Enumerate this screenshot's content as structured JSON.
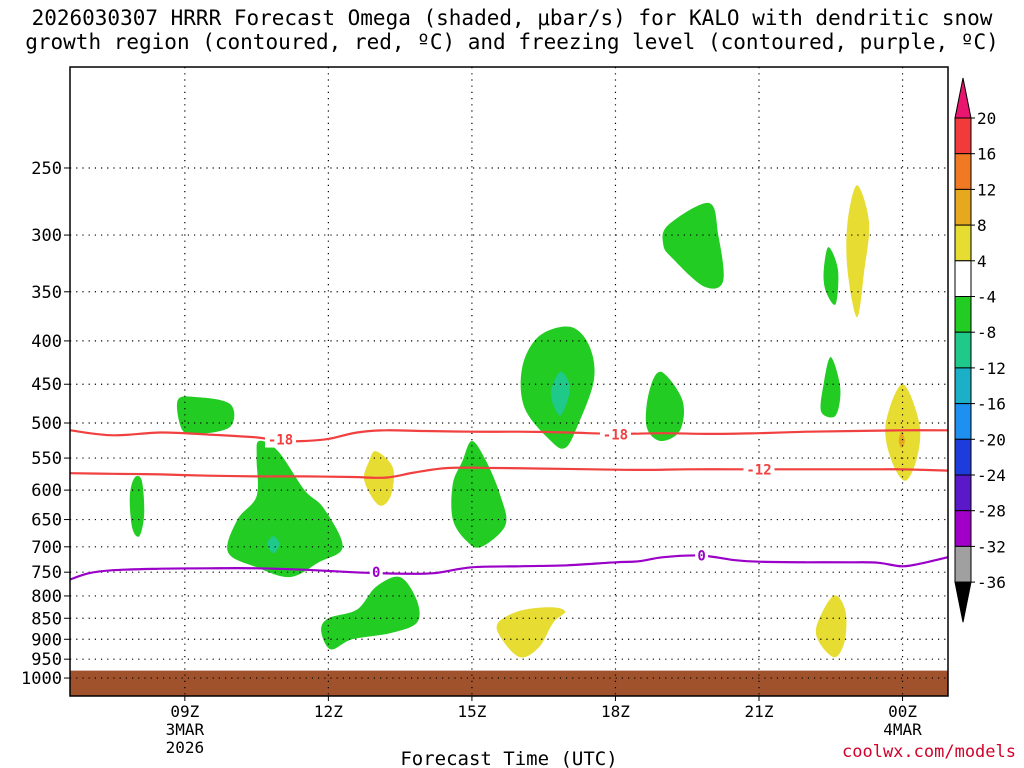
{
  "title_line1": "2026030307 HRRR Forecast Omega (shaded, μbar/s) for KALO with dendritic snow",
  "title_line2": "growth region (contoured, red, ºC) and freezing level (contoured, purple, ºC)",
  "watermark": "coolwx.com/models",
  "chart_data": {
    "type": "contour",
    "xlabel": "Forecast Time (UTC)",
    "ylabel": "",
    "y_scale": "pressure (log), inverted",
    "x_range_hours": [
      6.6,
      24.95
    ],
    "y_range_hpa": [
      190,
      1050
    ],
    "x_ticks": [
      {
        "hour": 9,
        "label": "09Z",
        "sub1": "3MAR",
        "sub2": "2026"
      },
      {
        "hour": 12,
        "label": "12Z",
        "sub1": "",
        "sub2": ""
      },
      {
        "hour": 15,
        "label": "15Z",
        "sub1": "",
        "sub2": ""
      },
      {
        "hour": 18,
        "label": "18Z",
        "sub1": "",
        "sub2": ""
      },
      {
        "hour": 21,
        "label": "21Z",
        "sub1": "",
        "sub2": ""
      },
      {
        "hour": 24,
        "label": "00Z",
        "sub1": "4MAR",
        "sub2": ""
      }
    ],
    "y_ticks": [
      250,
      300,
      350,
      400,
      450,
      500,
      550,
      600,
      650,
      700,
      750,
      800,
      850,
      900,
      950,
      1000
    ],
    "grid": "dotted",
    "ground_band": {
      "from_hpa": 980,
      "color": "#a0522d"
    },
    "colorbar": {
      "labels": [
        "20",
        "16",
        "12",
        "8",
        "4",
        "-4",
        "-8",
        "-12",
        "-16",
        "-20",
        "-24",
        "-28",
        "-32",
        "-36"
      ],
      "colors": [
        "#e8166e",
        "#f23a3a",
        "#f07a24",
        "#e6a81e",
        "#e6dc32",
        "#ffffff",
        "#22cc22",
        "#1ec98a",
        "#1cb0c8",
        "#1e90f0",
        "#1e3cdc",
        "#5a18c8",
        "#a000c8",
        "#a0a0a0",
        "#000000"
      ]
    },
    "contours": [
      {
        "name": "dendritic snow growth -18",
        "color": "#f04040",
        "label": "-18",
        "label_at": [
          [
            11.0,
            523
          ],
          [
            18.0,
            516
          ]
        ],
        "points": [
          [
            6.6,
            510
          ],
          [
            7.5,
            517
          ],
          [
            8.5,
            513
          ],
          [
            9.5,
            516
          ],
          [
            10.5,
            520
          ],
          [
            11.0,
            525
          ],
          [
            11.5,
            525
          ],
          [
            12.0,
            522
          ],
          [
            12.6,
            513
          ],
          [
            13.2,
            510
          ],
          [
            14.0,
            511
          ],
          [
            15.0,
            512
          ],
          [
            16.0,
            512
          ],
          [
            17.0,
            513
          ],
          [
            18.0,
            515
          ],
          [
            19.0,
            514
          ],
          [
            20.0,
            515
          ],
          [
            21.0,
            514
          ],
          [
            22.0,
            512
          ],
          [
            23.0,
            511
          ],
          [
            24.0,
            510
          ],
          [
            24.95,
            510
          ]
        ]
      },
      {
        "name": "dendritic snow growth -12",
        "color": "#f04040",
        "label": "-12",
        "label_at": [
          [
            21.0,
            567
          ]
        ],
        "points": [
          [
            6.6,
            573
          ],
          [
            7.5,
            574
          ],
          [
            8.5,
            575
          ],
          [
            9.5,
            577
          ],
          [
            10.5,
            578
          ],
          [
            11.5,
            578
          ],
          [
            12.5,
            579
          ],
          [
            13.2,
            580
          ],
          [
            13.8,
            572
          ],
          [
            14.5,
            565
          ],
          [
            15.5,
            565
          ],
          [
            16.5,
            566
          ],
          [
            17.5,
            567
          ],
          [
            18.5,
            568
          ],
          [
            19.5,
            567
          ],
          [
            20.5,
            567
          ],
          [
            21.5,
            567
          ],
          [
            22.5,
            567
          ],
          [
            23.5,
            567
          ],
          [
            24.0,
            567
          ],
          [
            24.95,
            569
          ]
        ]
      },
      {
        "name": "freezing level 0",
        "color": "#9a00c8",
        "label": "0",
        "label_at": [
          [
            13.0,
            750
          ],
          [
            19.8,
            717
          ]
        ],
        "points": [
          [
            6.6,
            765
          ],
          [
            7.0,
            752
          ],
          [
            7.5,
            746
          ],
          [
            8.5,
            743
          ],
          [
            9.5,
            742
          ],
          [
            10.5,
            742
          ],
          [
            11.5,
            745
          ],
          [
            12.5,
            750
          ],
          [
            13.5,
            753
          ],
          [
            14.2,
            752
          ],
          [
            15.0,
            740
          ],
          [
            16.0,
            738
          ],
          [
            17.0,
            736
          ],
          [
            18.0,
            730
          ],
          [
            18.5,
            728
          ],
          [
            19.0,
            720
          ],
          [
            19.8,
            717
          ],
          [
            20.5,
            726
          ],
          [
            21.0,
            729
          ],
          [
            22.0,
            730
          ],
          [
            23.0,
            730
          ],
          [
            23.5,
            731
          ],
          [
            24.0,
            738
          ],
          [
            24.5,
            730
          ],
          [
            24.95,
            720
          ]
        ]
      }
    ],
    "shaded_regions": [
      {
        "level": "-4 to -8",
        "color": "#22cc22",
        "points": [
          [
            8.85,
            470
          ],
          [
            9.25,
            466
          ],
          [
            9.95,
            475
          ],
          [
            9.95,
            505
          ],
          [
            9.3,
            515
          ],
          [
            8.95,
            510
          ]
        ]
      },
      {
        "level": "-4 to -8",
        "color": "#22cc22",
        "points": [
          [
            7.95,
            580
          ],
          [
            8.1,
            585
          ],
          [
            8.15,
            640
          ],
          [
            8.05,
            680
          ],
          [
            7.9,
            665
          ],
          [
            7.85,
            610
          ]
        ]
      },
      {
        "level": "-4 to -8",
        "color": "#22cc22",
        "points": [
          [
            10.55,
            525
          ],
          [
            10.95,
            540
          ],
          [
            11.5,
            600
          ],
          [
            11.9,
            630
          ],
          [
            12.3,
            700
          ],
          [
            11.8,
            730
          ],
          [
            11.2,
            760
          ],
          [
            10.5,
            740
          ],
          [
            9.9,
            710
          ],
          [
            10.1,
            650
          ],
          [
            10.5,
            610
          ],
          [
            10.5,
            550
          ]
        ]
      },
      {
        "level": "-8 to -12",
        "color": "#1ec98a",
        "points": [
          [
            10.85,
            680
          ],
          [
            10.98,
            695
          ],
          [
            10.85,
            712
          ],
          [
            10.72,
            695
          ]
        ]
      },
      {
        "level": "-4 to -8",
        "color": "#22cc22",
        "points": [
          [
            12.6,
            830
          ],
          [
            13.0,
            780
          ],
          [
            13.5,
            760
          ],
          [
            13.85,
            810
          ],
          [
            13.85,
            860
          ],
          [
            13.3,
            885
          ],
          [
            12.5,
            900
          ],
          [
            12.05,
            925
          ],
          [
            11.85,
            880
          ],
          [
            12.0,
            850
          ]
        ]
      },
      {
        "level": "-4 to -8",
        "color": "#22cc22",
        "points": [
          [
            15.0,
            525
          ],
          [
            15.3,
            555
          ],
          [
            15.6,
            610
          ],
          [
            15.7,
            660
          ],
          [
            15.2,
            700
          ],
          [
            14.9,
            690
          ],
          [
            14.6,
            650
          ],
          [
            14.6,
            590
          ],
          [
            14.8,
            555
          ]
        ]
      },
      {
        "level": "-4 to -8",
        "color": "#22cc22",
        "points": [
          [
            17.05,
            385
          ],
          [
            17.45,
            405
          ],
          [
            17.55,
            445
          ],
          [
            17.2,
            505
          ],
          [
            16.95,
            535
          ],
          [
            16.65,
            525
          ],
          [
            16.1,
            480
          ],
          [
            16.05,
            430
          ],
          [
            16.4,
            395
          ]
        ]
      },
      {
        "level": "-8 to -12",
        "color": "#1ec98a",
        "points": [
          [
            16.85,
            435
          ],
          [
            17.05,
            455
          ],
          [
            16.85,
            490
          ],
          [
            16.65,
            462
          ]
        ]
      },
      {
        "level": "-4 to -8",
        "color": "#22cc22",
        "points": [
          [
            18.95,
            435
          ],
          [
            19.4,
            470
          ],
          [
            19.35,
            510
          ],
          [
            18.95,
            525
          ],
          [
            18.65,
            505
          ],
          [
            18.7,
            460
          ]
        ]
      },
      {
        "level": "-4 to -8",
        "color": "#22cc22",
        "points": [
          [
            19.95,
            275
          ],
          [
            20.15,
            300
          ],
          [
            20.25,
            340
          ],
          [
            19.85,
            345
          ],
          [
            19.2,
            320
          ],
          [
            19.0,
            308
          ],
          [
            19.1,
            292
          ]
        ]
      },
      {
        "level": "-4 to -8",
        "color": "#22cc22",
        "points": [
          [
            22.45,
            310
          ],
          [
            22.65,
            330
          ],
          [
            22.6,
            362
          ],
          [
            22.4,
            350
          ],
          [
            22.35,
            332
          ]
        ]
      },
      {
        "level": "-4 to -8",
        "color": "#22cc22",
        "points": [
          [
            22.5,
            418
          ],
          [
            22.7,
            455
          ],
          [
            22.6,
            490
          ],
          [
            22.3,
            485
          ],
          [
            22.35,
            450
          ]
        ]
      },
      {
        "level": "4 to 8",
        "color": "#e6dc32",
        "points": [
          [
            13.0,
            540
          ],
          [
            13.35,
            565
          ],
          [
            13.3,
            610
          ],
          [
            13.05,
            625
          ],
          [
            12.75,
            585
          ],
          [
            12.85,
            555
          ]
        ]
      },
      {
        "level": "4 to 8",
        "color": "#e6dc32",
        "points": [
          [
            16.0,
            833
          ],
          [
            16.65,
            825
          ],
          [
            16.95,
            835
          ],
          [
            16.7,
            860
          ],
          [
            16.4,
            920
          ],
          [
            16.0,
            945
          ],
          [
            15.6,
            895
          ],
          [
            15.55,
            860
          ]
        ]
      },
      {
        "level": "4 to 8",
        "color": "#e6dc32",
        "points": [
          [
            22.55,
            800
          ],
          [
            22.8,
            830
          ],
          [
            22.8,
            900
          ],
          [
            22.6,
            945
          ],
          [
            22.3,
            915
          ],
          [
            22.2,
            870
          ]
        ]
      },
      {
        "level": "4 to 8",
        "color": "#e6dc32",
        "points": [
          [
            23.05,
            262
          ],
          [
            23.3,
            290
          ],
          [
            23.2,
            330
          ],
          [
            23.05,
            375
          ],
          [
            22.85,
            330
          ],
          [
            22.85,
            290
          ]
        ]
      },
      {
        "level": "4 to 8",
        "color": "#e6dc32",
        "points": [
          [
            24.0,
            450
          ],
          [
            24.35,
            500
          ],
          [
            24.3,
            550
          ],
          [
            24.05,
            585
          ],
          [
            23.75,
            550
          ],
          [
            23.65,
            500
          ]
        ]
      },
      {
        "level": "8 to 12",
        "color": "#e6a81e",
        "points": [
          [
            23.98,
            512
          ],
          [
            24.05,
            525
          ],
          [
            23.98,
            535
          ],
          [
            23.92,
            525
          ]
        ]
      }
    ]
  }
}
